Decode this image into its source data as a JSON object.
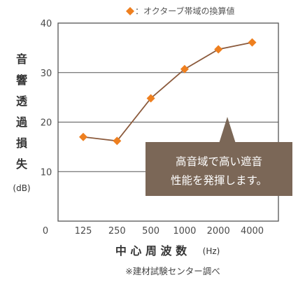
{
  "legend": {
    "marker_color": "#ee7f1f",
    "label": "：オクターブ帯域の換算値"
  },
  "chart_data": {
    "type": "line",
    "categories": [
      "125",
      "250",
      "500",
      "1000",
      "2000",
      "4000"
    ],
    "series": [
      {
        "name": "",
        "values": [
          17,
          16.2,
          24.8,
          30.7,
          34.7,
          36.1
        ]
      }
    ],
    "origin_label": "0",
    "ylim": [
      0,
      40
    ],
    "yticks": [
      10,
      20,
      30,
      40
    ],
    "ylabel_chars": [
      "音",
      "響",
      "透",
      "過",
      "損",
      "失"
    ],
    "ylabel_unit": "(dB)",
    "xlabel": "中 心 周 波 数",
    "xlabel_unit": "(Hz)",
    "grid": true,
    "line_color": "#8b5a3c",
    "marker_color": "#ee7f1f"
  },
  "callout": {
    "line1": "高音域で高い遮音",
    "line2": "性能を発揮します。",
    "color": "#7b6757"
  },
  "footnote": "※建材試験センター調べ"
}
